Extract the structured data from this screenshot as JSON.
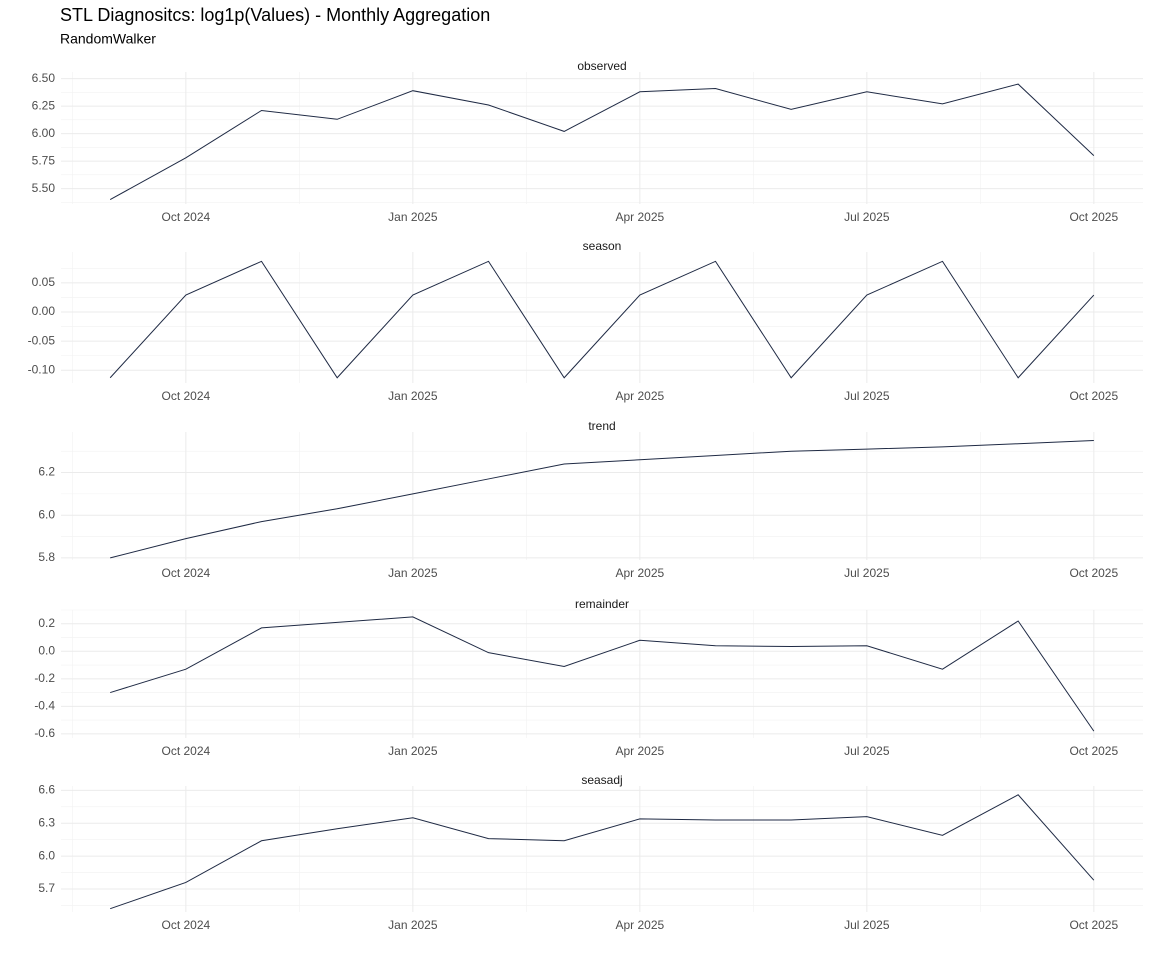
{
  "title": "STL Diagnositcs: log1p(Values) - Monthly Aggregation",
  "subtitle": "RandomWalker",
  "chart_data": [
    {
      "type": "line",
      "title": "observed",
      "color": "#1f2a44",
      "x": [
        "2024-09",
        "2024-10",
        "2024-11",
        "2024-12",
        "2025-01",
        "2025-02",
        "2025-03",
        "2025-04",
        "2025-05",
        "2025-06",
        "2025-07",
        "2025-08",
        "2025-09",
        "2025-10"
      ],
      "values": [
        5.4,
        5.78,
        6.21,
        6.13,
        6.39,
        6.26,
        6.02,
        6.38,
        6.41,
        6.22,
        6.38,
        6.27,
        6.45,
        5.8
      ],
      "xlim": [
        "2024-09",
        "2025-10"
      ],
      "xticks": [
        {
          "value": "2024-10",
          "label": "Oct 2024"
        },
        {
          "value": "2025-01",
          "label": "Jan 2025"
        },
        {
          "value": "2025-04",
          "label": "Apr 2025"
        },
        {
          "value": "2025-07",
          "label": "Jul 2025"
        },
        {
          "value": "2025-10",
          "label": "Oct 2025"
        }
      ],
      "ylim": [
        5.36,
        6.56
      ],
      "yticks": [
        {
          "value": 5.5,
          "label": "5.50"
        },
        {
          "value": 5.75,
          "label": "5.75"
        },
        {
          "value": 6,
          "label": "6.00"
        },
        {
          "value": 6.25,
          "label": "6.25"
        },
        {
          "value": 6.5,
          "label": "6.50"
        }
      ],
      "grid": true
    },
    {
      "type": "line",
      "title": "season",
      "color": "#1f2a44",
      "x": [
        "2024-09",
        "2024-10",
        "2024-11",
        "2024-12",
        "2025-01",
        "2025-02",
        "2025-03",
        "2025-04",
        "2025-05",
        "2025-06",
        "2025-07",
        "2025-08",
        "2025-09",
        "2025-10"
      ],
      "values": [
        -0.113,
        0.029,
        0.087,
        -0.113,
        0.029,
        0.087,
        -0.113,
        0.029,
        0.087,
        -0.113,
        0.029,
        0.087,
        -0.113,
        0.029
      ],
      "xlim": [
        "2024-09",
        "2025-10"
      ],
      "xticks": [
        {
          "value": "2024-10",
          "label": "Oct 2024"
        },
        {
          "value": "2025-01",
          "label": "Jan 2025"
        },
        {
          "value": "2025-04",
          "label": "Apr 2025"
        },
        {
          "value": "2025-07",
          "label": "Jul 2025"
        },
        {
          "value": "2025-10",
          "label": "Oct 2025"
        }
      ],
      "ylim": [
        -0.122,
        0.103
      ],
      "yticks": [
        {
          "value": -0.1,
          "label": "-0.10"
        },
        -0.05,
        {
          "value": 0,
          "label": "0.00"
        },
        0.05
      ],
      "grid": true
    },
    {
      "type": "line",
      "title": "trend",
      "color": "#1f2a44",
      "x": [
        "2024-09",
        "2024-10",
        "2024-11",
        "2024-12",
        "2025-01",
        "2025-02",
        "2025-03",
        "2025-04",
        "2025-05",
        "2025-06",
        "2025-07",
        "2025-08",
        "2025-09",
        "2025-10"
      ],
      "values": [
        5.8,
        5.89,
        5.97,
        6.03,
        6.1,
        6.17,
        6.24,
        6.26,
        6.28,
        6.3,
        6.31,
        6.32,
        6.335,
        6.35
      ],
      "xlim": [
        "2024-09",
        "2025-10"
      ],
      "xticks": [
        {
          "value": "2024-10",
          "label": "Oct 2024"
        },
        {
          "value": "2025-01",
          "label": "Jan 2025"
        },
        {
          "value": "2025-04",
          "label": "Apr 2025"
        },
        {
          "value": "2025-07",
          "label": "Jul 2025"
        },
        {
          "value": "2025-10",
          "label": "Oct 2025"
        }
      ],
      "ylim": [
        5.79,
        6.39
      ],
      "yticks": [
        5.8,
        {
          "value": 6,
          "label": "6.0"
        },
        6.2
      ],
      "grid": true
    },
    {
      "type": "line",
      "title": "remainder",
      "color": "#1f2a44",
      "x": [
        "2024-09",
        "2024-10",
        "2024-11",
        "2024-12",
        "2025-01",
        "2025-02",
        "2025-03",
        "2025-04",
        "2025-05",
        "2025-06",
        "2025-07",
        "2025-08",
        "2025-09",
        "2025-10"
      ],
      "values": [
        -0.3,
        -0.13,
        0.17,
        0.21,
        0.25,
        -0.01,
        -0.11,
        0.08,
        0.04,
        0.035,
        0.04,
        -0.13,
        0.22,
        -0.58
      ],
      "xlim": [
        "2024-09",
        "2025-10"
      ],
      "xticks": [
        {
          "value": "2024-10",
          "label": "Oct 2024"
        },
        {
          "value": "2025-01",
          "label": "Jan 2025"
        },
        {
          "value": "2025-04",
          "label": "Apr 2025"
        },
        {
          "value": "2025-07",
          "label": "Jul 2025"
        },
        {
          "value": "2025-10",
          "label": "Oct 2025"
        }
      ],
      "ylim": [
        -0.63,
        0.3
      ],
      "yticks": [
        -0.6,
        -0.4,
        -0.2,
        {
          "value": 0,
          "label": "0.0"
        },
        0.2
      ],
      "grid": true
    },
    {
      "type": "line",
      "title": "seasadj",
      "color": "#1f2a44",
      "x": [
        "2024-09",
        "2024-10",
        "2024-11",
        "2024-12",
        "2025-01",
        "2025-02",
        "2025-03",
        "2025-04",
        "2025-05",
        "2025-06",
        "2025-07",
        "2025-08",
        "2025-09",
        "2025-10"
      ],
      "values": [
        5.52,
        5.76,
        6.14,
        6.25,
        6.35,
        6.16,
        6.14,
        6.34,
        6.33,
        6.33,
        6.36,
        6.19,
        6.56,
        5.78
      ],
      "xlim": [
        "2024-09",
        "2025-10"
      ],
      "xticks": [
        {
          "value": "2024-10",
          "label": "Oct 2024"
        },
        {
          "value": "2025-01",
          "label": "Jan 2025"
        },
        {
          "value": "2025-04",
          "label": "Apr 2025"
        },
        {
          "value": "2025-07",
          "label": "Jul 2025"
        },
        {
          "value": "2025-10",
          "label": "Oct 2025"
        }
      ],
      "ylim": [
        5.49,
        6.64
      ],
      "yticks": [
        5.7,
        {
          "value": 6,
          "label": "6.0"
        },
        6.3,
        6.6
      ],
      "grid": true
    }
  ]
}
